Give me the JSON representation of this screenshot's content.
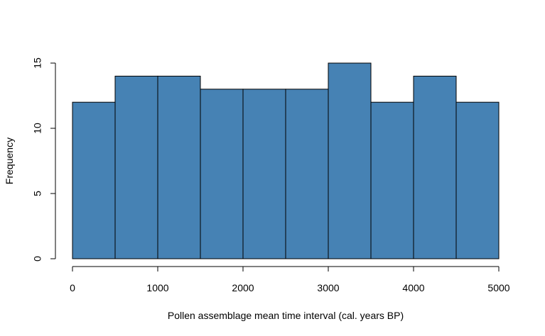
{
  "chart_data": {
    "type": "histogram",
    "title": "",
    "xlabel": "Pollen assemblage mean time interval (cal. years BP)",
    "ylabel": "Frequency",
    "bin_edges": [
      0,
      500,
      1000,
      1500,
      2000,
      2500,
      3000,
      3500,
      4000,
      4500,
      5000
    ],
    "values": [
      12,
      14,
      14,
      13,
      13,
      13,
      15,
      12,
      14,
      12
    ],
    "x_ticks": [
      0,
      1000,
      2000,
      3000,
      4000,
      5000
    ],
    "y_ticks": [
      0,
      5,
      10,
      15
    ],
    "xlim": [
      0,
      5000
    ],
    "ylim": [
      0,
      15
    ],
    "bar_color": "#4682B4",
    "bar_edge_color": "#000000",
    "grid": false,
    "legend": "none"
  }
}
